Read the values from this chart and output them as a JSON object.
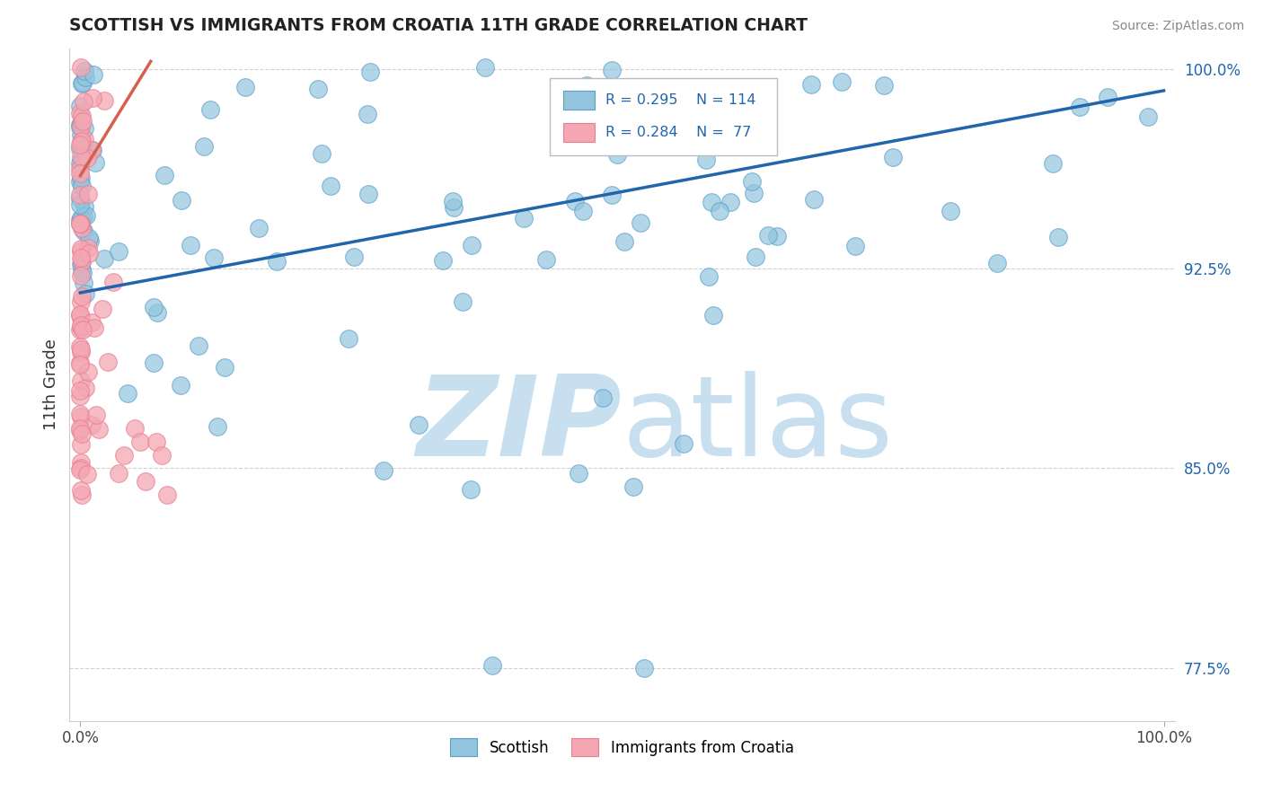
{
  "title": "SCOTTISH VS IMMIGRANTS FROM CROATIA 11TH GRADE CORRELATION CHART",
  "source_text": "Source: ZipAtlas.com",
  "ylabel": "11th Grade",
  "xlim": [
    -0.01,
    1.01
  ],
  "ylim": [
    0.755,
    1.008
  ],
  "yticks": [
    0.775,
    0.85,
    0.925,
    1.0
  ],
  "ytick_labels": [
    "77.5%",
    "85.0%",
    "92.5%",
    "100.0%"
  ],
  "xtick_labels": [
    "0.0%",
    "100.0%"
  ],
  "xticks": [
    0.0,
    1.0
  ],
  "legend_blue_r": "R = 0.295",
  "legend_blue_n": "N = 114",
  "legend_pink_r": "R = 0.284",
  "legend_pink_n": "N =  77",
  "blue_color": "#92c5de",
  "pink_color": "#f4a7b2",
  "blue_edge_color": "#5b9fc8",
  "pink_edge_color": "#e87f95",
  "trend_blue_color": "#2166ac",
  "trend_pink_color": "#d6604d",
  "legend_r_color": "#2166ac",
  "legend_n_color": "#2166ac",
  "watermark_color": "#c8dff0",
  "background_color": "#ffffff",
  "grid_color": "#d0d0d0",
  "blue_trend_x0": 0.0,
  "blue_trend_y0": 0.916,
  "blue_trend_x1": 1.0,
  "blue_trend_y1": 0.992,
  "pink_trend_x0": 0.0,
  "pink_trend_y0": 0.96,
  "pink_trend_x1": 0.065,
  "pink_trend_y1": 1.003
}
